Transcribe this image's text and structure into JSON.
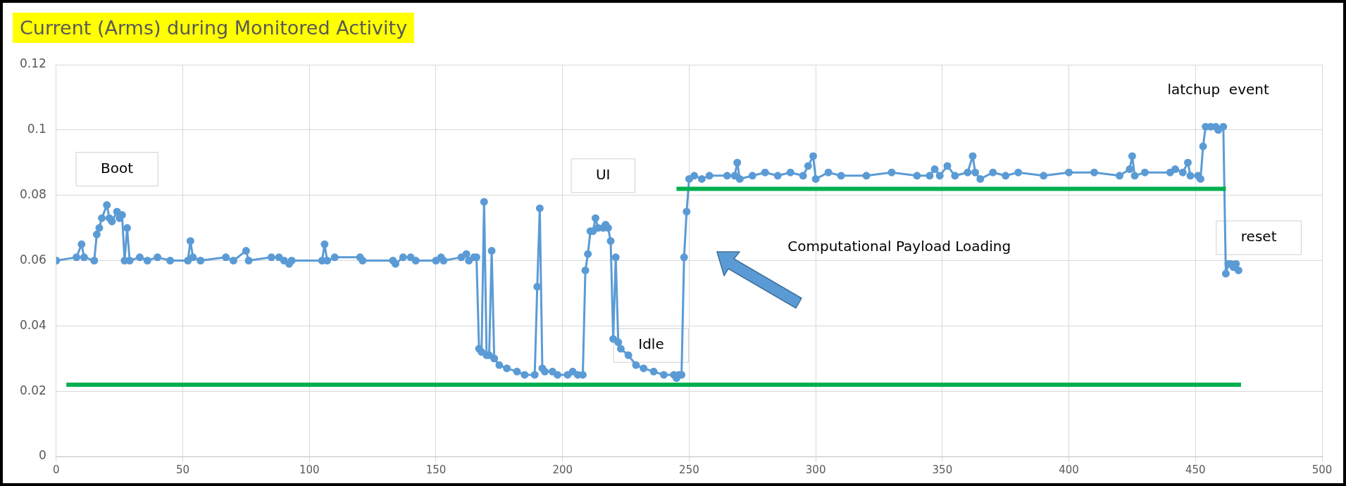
{
  "chart_data": {
    "type": "line",
    "title": "Current (Arms) during Monitored Activity",
    "xlim": [
      0,
      500
    ],
    "xticks": [
      0,
      50,
      100,
      150,
      200,
      250,
      300,
      350,
      400,
      450,
      500
    ],
    "ylim": [
      0,
      0.12
    ],
    "yticks": [
      0,
      0.02,
      0.04,
      0.06,
      0.08,
      0.1,
      0.12
    ],
    "grid": true,
    "legend": false,
    "line_style": "solid",
    "series": [
      {
        "type": "line",
        "color": "#00b050",
        "marker": "none",
        "x": [
          4,
          468
        ],
        "values": [
          0.022,
          0.022
        ]
      },
      {
        "type": "line",
        "color": "#00b050",
        "marker": "none",
        "x": [
          245,
          462
        ],
        "values": [
          0.082,
          0.082
        ]
      },
      {
        "type": "line",
        "color": "#5b9bd5",
        "marker": "circle",
        "x": [
          0,
          8,
          10,
          11,
          15,
          16,
          17,
          18,
          20,
          21,
          22,
          24,
          25,
          26,
          27,
          28,
          29,
          33,
          36,
          40,
          45,
          52,
          53,
          54,
          57,
          67,
          70,
          75,
          76,
          85,
          88,
          90,
          92,
          93,
          105,
          106,
          107,
          110,
          120,
          121,
          133,
          134,
          137,
          140,
          142,
          150,
          152,
          153,
          160,
          162,
          163,
          165,
          166,
          167,
          168,
          169,
          170,
          171,
          172,
          173,
          175,
          178,
          182,
          185,
          189,
          190,
          191,
          192,
          193,
          196,
          198,
          202,
          204,
          206,
          208,
          209,
          210,
          211,
          212,
          213,
          214,
          216,
          217,
          218,
          219,
          220,
          221,
          222,
          223,
          226,
          229,
          232,
          236,
          240,
          244,
          245,
          246,
          247,
          248,
          249,
          250,
          252,
          255,
          258,
          265,
          268,
          269,
          270,
          275,
          280,
          285,
          290,
          295,
          297,
          299,
          300,
          305,
          310,
          320,
          330,
          340,
          345,
          347,
          349,
          352,
          355,
          360,
          362,
          363,
          365,
          370,
          375,
          380,
          390,
          400,
          410,
          420,
          424,
          425,
          426,
          430,
          440,
          442,
          445,
          447,
          448,
          451,
          452,
          453,
          454,
          456,
          458,
          459,
          461,
          462,
          463,
          464,
          465,
          466,
          467
        ],
        "values": [
          0.06,
          0.061,
          0.065,
          0.061,
          0.06,
          0.068,
          0.07,
          0.073,
          0.077,
          0.073,
          0.072,
          0.075,
          0.073,
          0.074,
          0.06,
          0.07,
          0.06,
          0.061,
          0.06,
          0.061,
          0.06,
          0.06,
          0.066,
          0.061,
          0.06,
          0.061,
          0.06,
          0.063,
          0.06,
          0.061,
          0.061,
          0.06,
          0.059,
          0.06,
          0.06,
          0.065,
          0.06,
          0.061,
          0.061,
          0.06,
          0.06,
          0.059,
          0.061,
          0.061,
          0.06,
          0.06,
          0.061,
          0.06,
          0.061,
          0.062,
          0.06,
          0.061,
          0.061,
          0.033,
          0.032,
          0.078,
          0.031,
          0.031,
          0.063,
          0.03,
          0.028,
          0.027,
          0.026,
          0.025,
          0.025,
          0.052,
          0.076,
          0.027,
          0.026,
          0.026,
          0.025,
          0.025,
          0.026,
          0.025,
          0.025,
          0.057,
          0.062,
          0.069,
          0.069,
          0.073,
          0.07,
          0.07,
          0.071,
          0.07,
          0.066,
          0.036,
          0.061,
          0.035,
          0.033,
          0.031,
          0.028,
          0.027,
          0.026,
          0.025,
          0.025,
          0.024,
          0.025,
          0.025,
          0.061,
          0.075,
          0.085,
          0.086,
          0.085,
          0.086,
          0.086,
          0.086,
          0.09,
          0.085,
          0.086,
          0.087,
          0.086,
          0.087,
          0.086,
          0.089,
          0.092,
          0.085,
          0.087,
          0.086,
          0.086,
          0.087,
          0.086,
          0.086,
          0.088,
          0.086,
          0.089,
          0.086,
          0.087,
          0.092,
          0.087,
          0.085,
          0.087,
          0.086,
          0.087,
          0.086,
          0.087,
          0.087,
          0.086,
          0.088,
          0.092,
          0.086,
          0.087,
          0.087,
          0.088,
          0.087,
          0.09,
          0.086,
          0.086,
          0.085,
          0.095,
          0.101,
          0.101,
          0.101,
          0.1,
          0.101,
          0.056,
          0.059,
          0.059,
          0.058,
          0.059,
          0.057
        ]
      }
    ],
    "annotations": [
      "Boot",
      "UI",
      "Idle",
      "Computational Payload Loading",
      "latchup  event",
      "reset"
    ]
  }
}
